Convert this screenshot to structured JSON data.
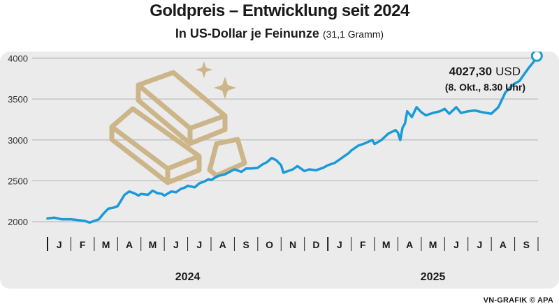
{
  "header": {
    "title": "Goldpreis – Entwicklung seit 2024",
    "subtitle_main": "In US-Dollar je Feinunze",
    "subtitle_unit": "(31,1 Gramm)"
  },
  "footer": {
    "credit": "VN-GRAFIK © APA"
  },
  "colors": {
    "line": "#1a9ad6",
    "grid": "#b8b8b8",
    "panel": "#ebebeb",
    "gold": "#cdb58a"
  },
  "chart_data": {
    "type": "line",
    "title": "Goldpreis – Entwicklung seit 2024",
    "ylabel": "In US-Dollar je Feinunze (31,1 Gramm)",
    "ylim": [
      1950,
      4080
    ],
    "yticks": [
      2000,
      2500,
      3000,
      3500,
      4000
    ],
    "ytick_labels": [
      "2000",
      "2500",
      "3000",
      "3500",
      "4000"
    ],
    "months": [
      "J",
      "F",
      "M",
      "A",
      "M",
      "J",
      "J",
      "A",
      "S",
      "O",
      "N",
      "D",
      "J",
      "F",
      "M",
      "A",
      "M",
      "J",
      "J",
      "A",
      "S"
    ],
    "years": [
      "2024",
      "2025"
    ],
    "grid": true,
    "series": [
      {
        "x": [
          0,
          0.3,
          0.6,
          1,
          1.3,
          1.6,
          1.8,
          2,
          2.2,
          2.4,
          2.6,
          2.8,
          3,
          3.15,
          3.3,
          3.5,
          3.7,
          3.9,
          4,
          4.3,
          4.5,
          4.7,
          4.9,
          5,
          5.3,
          5.5,
          5.7,
          5.9,
          6,
          6.3,
          6.5,
          6.7,
          6.9,
          7,
          7.3,
          7.6,
          8,
          8.3,
          8.5,
          8.7,
          9,
          9.2,
          9.4,
          9.6,
          9.8,
          10,
          10.1,
          10.3,
          10.5,
          10.7,
          11,
          11.2,
          11.5,
          11.8,
          12,
          12.3,
          12.6,
          12.9,
          13,
          13.3,
          13.6,
          13.9,
          14,
          14.3,
          14.6,
          14.9,
          15,
          15.1,
          15.2,
          15.3,
          15.4,
          15.6,
          15.8,
          16,
          16.2,
          16.5,
          16.8,
          17,
          17.2,
          17.5,
          17.7,
          18,
          18.3,
          18.6,
          19,
          19.3,
          19.6,
          19.8,
          20,
          20.2,
          20.4,
          20.6,
          20.8,
          20.95
        ],
        "y": [
          2040,
          2050,
          2030,
          2030,
          2020,
          2010,
          1990,
          2010,
          2030,
          2100,
          2160,
          2170,
          2190,
          2260,
          2330,
          2370,
          2350,
          2320,
          2340,
          2330,
          2380,
          2350,
          2340,
          2320,
          2370,
          2360,
          2400,
          2420,
          2440,
          2420,
          2470,
          2490,
          2520,
          2510,
          2560,
          2580,
          2640,
          2610,
          2650,
          2650,
          2660,
          2700,
          2730,
          2780,
          2750,
          2690,
          2600,
          2620,
          2640,
          2680,
          2620,
          2640,
          2630,
          2660,
          2690,
          2720,
          2780,
          2840,
          2870,
          2930,
          2960,
          3000,
          2950,
          3000,
          3080,
          3120,
          3090,
          3000,
          3150,
          3200,
          3350,
          3280,
          3400,
          3340,
          3300,
          3330,
          3350,
          3380,
          3320,
          3400,
          3330,
          3350,
          3360,
          3340,
          3320,
          3400,
          3580,
          3640,
          3690,
          3720,
          3800,
          3880,
          3950,
          4027.3
        ]
      }
    ],
    "annotations": [
      {
        "value": "4027,30",
        "unit": "USD",
        "note": "(8. Okt., 8.30 Uhr)"
      }
    ]
  }
}
